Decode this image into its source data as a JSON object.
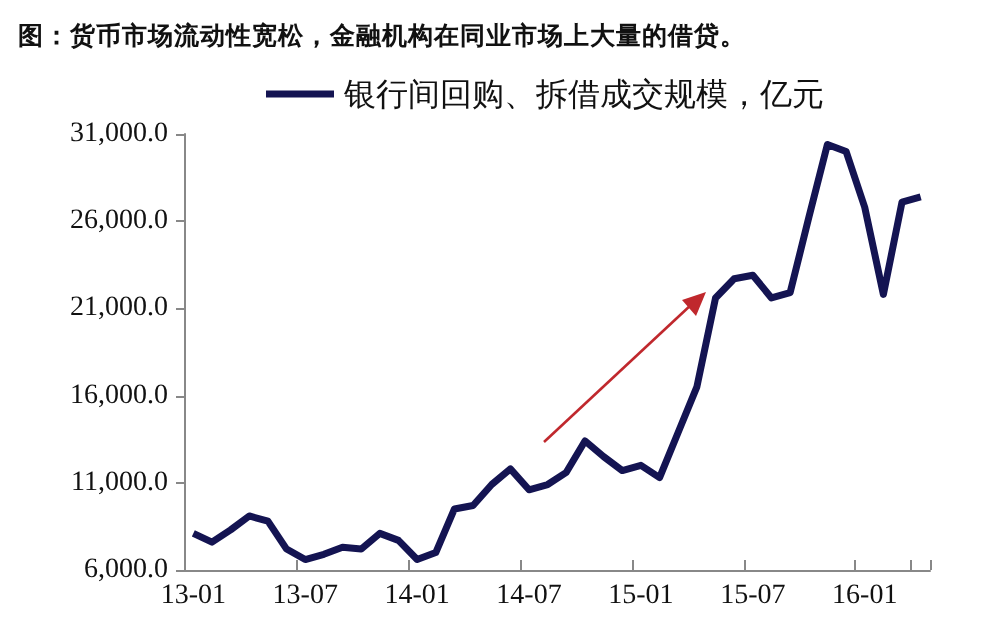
{
  "chart_data": {
    "type": "line",
    "title": "图：货币市场流动性宽松，金融机构在同业市场上大量的借贷。",
    "categories": [
      "13-01",
      null,
      null,
      null,
      null,
      null,
      "13-07",
      null,
      null,
      null,
      null,
      null,
      "14-01",
      null,
      null,
      null,
      null,
      null,
      "14-07",
      null,
      null,
      null,
      null,
      null,
      "15-01",
      null,
      null,
      null,
      null,
      null,
      "15-07",
      null,
      null,
      null,
      null,
      null,
      "16-01",
      null,
      null,
      null
    ],
    "series": [
      {
        "name": "银行间回购、拆借成交规模，亿元",
        "color": "#141452",
        "values": [
          8100,
          7600,
          8300,
          9100,
          8800,
          7200,
          6600,
          6900,
          7300,
          7200,
          8100,
          7700,
          6600,
          7000,
          9500,
          9700,
          10900,
          11800,
          10600,
          10900,
          11600,
          13400,
          12500,
          11700,
          12000,
          11300,
          13900,
          16500,
          21600,
          22700,
          22900,
          21600,
          21900,
          26200,
          30400,
          30000,
          26800,
          21800,
          27100,
          27400
        ]
      }
    ],
    "ylim": [
      6000,
      31000
    ],
    "yticks": [
      {
        "value": 6000,
        "label": "6,000.0"
      },
      {
        "value": 11000,
        "label": "11,000.0"
      },
      {
        "value": 16000,
        "label": "16,000.0"
      },
      {
        "value": 21000,
        "label": "21,000.0"
      },
      {
        "value": 26000,
        "label": "26,000.0"
      },
      {
        "value": 31000,
        "label": "31,000.0"
      }
    ],
    "legend": "top",
    "marker": "none"
  }
}
